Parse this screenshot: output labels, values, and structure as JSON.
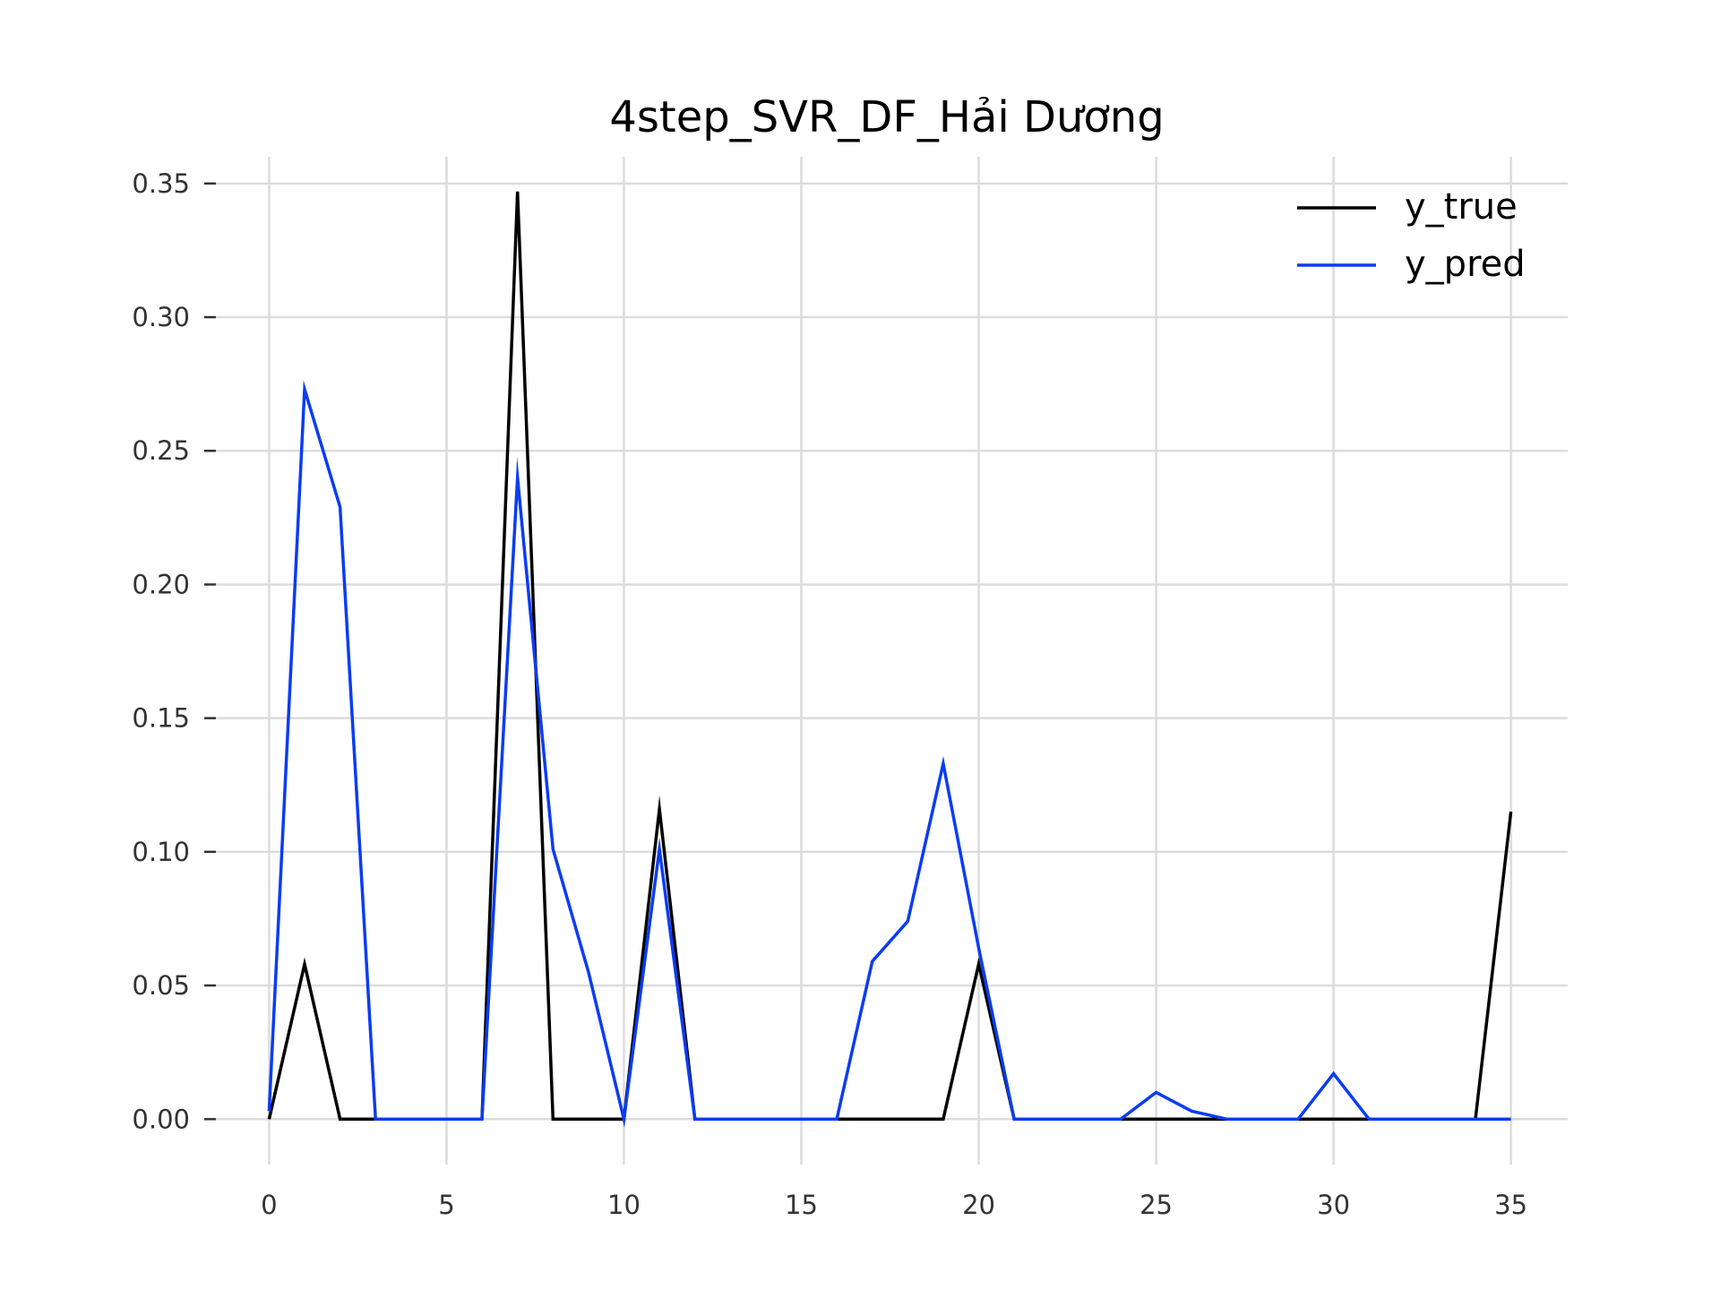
{
  "chart_data": {
    "type": "line",
    "title": "4step_SVR_DF_Hải Dương",
    "xlabel": "",
    "ylabel": "",
    "xlim": [
      -1.5,
      36.6
    ],
    "ylim": [
      -0.017,
      0.36
    ],
    "xticks": [
      0,
      5,
      10,
      15,
      20,
      25,
      30,
      35
    ],
    "xtick_labels": [
      "0",
      "5",
      "10",
      "15",
      "20",
      "25",
      "30",
      "35"
    ],
    "yticks": [
      0.0,
      0.05,
      0.1,
      0.15,
      0.2,
      0.25,
      0.3,
      0.35
    ],
    "ytick_labels": [
      "0.00",
      "0.05",
      "0.10",
      "0.15",
      "0.20",
      "0.25",
      "0.30",
      "0.35"
    ],
    "grid": true,
    "legend_position": "top-right",
    "x": [
      0,
      1,
      2,
      3,
      4,
      5,
      6,
      7,
      8,
      9,
      10,
      11,
      12,
      13,
      14,
      15,
      16,
      17,
      18,
      19,
      20,
      21,
      22,
      23,
      24,
      25,
      26,
      27,
      28,
      29,
      30,
      31,
      32,
      33,
      34,
      35
    ],
    "series": [
      {
        "name": "y_true",
        "color": "#000000",
        "values": [
          0,
          0.058,
          0,
          0,
          0,
          0,
          0,
          0.347,
          0,
          0,
          0,
          0.116,
          0,
          0,
          0,
          0,
          0,
          0,
          0,
          0,
          0.058,
          0,
          0,
          0,
          0,
          0,
          0,
          0,
          0,
          0,
          0,
          0,
          0,
          0,
          0,
          0.115
        ]
      },
      {
        "name": "y_pred",
        "color": "#0a3cf5",
        "values": [
          0.003,
          0.273,
          0.229,
          0,
          0,
          0,
          0,
          0.24,
          0.101,
          0.055,
          0,
          0.101,
          0,
          0,
          0,
          0,
          0,
          0.059,
          0.074,
          0.133,
          0.064,
          0,
          0,
          0,
          0,
          0.01,
          0.003,
          0,
          0,
          0,
          0.017,
          0,
          0,
          0,
          0,
          0
        ]
      }
    ]
  },
  "colors": {
    "background": "#ffffff",
    "grid": "#dcdcdc",
    "tick": "#333333"
  }
}
